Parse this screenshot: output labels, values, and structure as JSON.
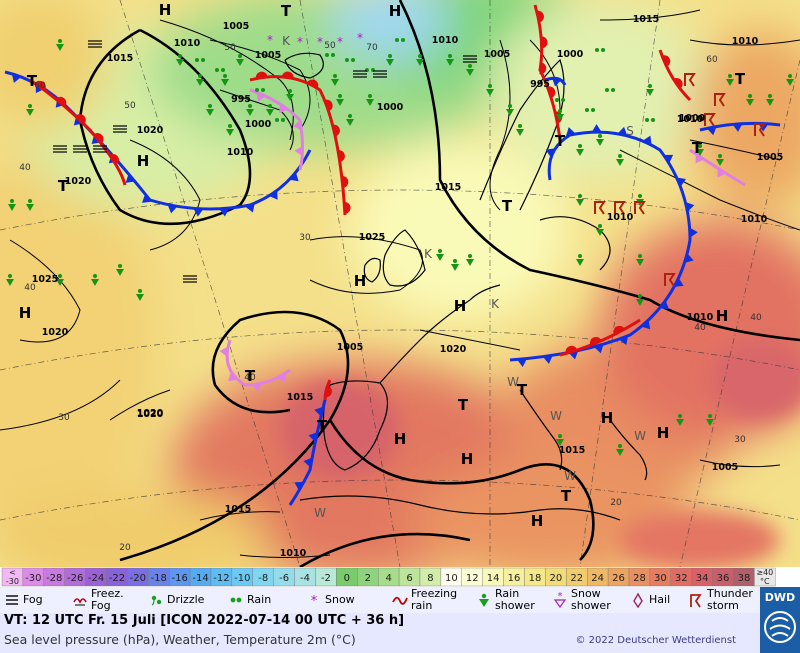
{
  "map": {
    "pressure_centers": [
      {
        "label": "H",
        "kind": "high"
      },
      {
        "label": "H",
        "kind": "high"
      },
      {
        "label": "H",
        "kind": "high"
      },
      {
        "label": "H",
        "kind": "high"
      },
      {
        "label": "H",
        "kind": "high"
      },
      {
        "label": "H",
        "kind": "high"
      },
      {
        "label": "H",
        "kind": "high"
      },
      {
        "label": "H",
        "kind": "high"
      },
      {
        "label": "H",
        "kind": "high"
      },
      {
        "label": "H",
        "kind": "high"
      },
      {
        "label": "H",
        "kind": "high"
      },
      {
        "label": "H",
        "kind": "high"
      },
      {
        "label": "T",
        "kind": "low"
      },
      {
        "label": "T",
        "kind": "low"
      },
      {
        "label": "T",
        "kind": "low"
      },
      {
        "label": "T",
        "kind": "low"
      },
      {
        "label": "T",
        "kind": "low"
      },
      {
        "label": "T",
        "kind": "low"
      },
      {
        "label": "T",
        "kind": "low"
      },
      {
        "label": "T",
        "kind": "low"
      },
      {
        "label": "T",
        "kind": "low"
      },
      {
        "label": "T",
        "kind": "low"
      },
      {
        "label": "T",
        "kind": "low"
      },
      {
        "label": "T",
        "kind": "low"
      }
    ],
    "isobar_labels": [
      "1015",
      "1010",
      "1005",
      "1020",
      "1010",
      "1005",
      "1000",
      "995",
      "1000",
      "995",
      "1010",
      "1020",
      "1025",
      "1015",
      "1025",
      "1020",
      "1020",
      "1020",
      "1015",
      "1010",
      "1015",
      "1005",
      "1010",
      "1005",
      "1010",
      "1010",
      "1000",
      "1015",
      "1005",
      "1020",
      "1015",
      "1005",
      "1000",
      "1010",
      "1010"
    ],
    "temperature_labels": [
      "40",
      "40",
      "40",
      "30",
      "30",
      "20",
      "20",
      "50",
      "50",
      "50",
      "60",
      "60",
      "70",
      "30",
      "40",
      "40"
    ],
    "wind_labels": [
      "K",
      "K",
      "K",
      "W",
      "W",
      "W",
      "W",
      "W",
      "S"
    ]
  },
  "temperature_scale": {
    "bins": [
      {
        "label": "<\n-30",
        "color": "#f2b8f2"
      },
      {
        "label": "-30",
        "color": "#dc8ce8"
      },
      {
        "label": "-28",
        "color": "#c87ae0"
      },
      {
        "label": "-26",
        "color": "#b06cd8"
      },
      {
        "label": "-24",
        "color": "#9a62d4"
      },
      {
        "label": "-22",
        "color": "#8a62d8"
      },
      {
        "label": "-20",
        "color": "#7a6ee0"
      },
      {
        "label": "-18",
        "color": "#6a82e8"
      },
      {
        "label": "-16",
        "color": "#5c96ee"
      },
      {
        "label": "-14",
        "color": "#56aaf0"
      },
      {
        "label": "-12",
        "color": "#5ebcf2"
      },
      {
        "label": "-10",
        "color": "#6ccaf2"
      },
      {
        "label": "-8",
        "color": "#80d6f0"
      },
      {
        "label": "-6",
        "color": "#94dcea"
      },
      {
        "label": "-4",
        "color": "#a8e2e2"
      },
      {
        "label": "-2",
        "color": "#b8e8d8"
      },
      {
        "label": "0",
        "color": "#78cc6c"
      },
      {
        "label": "2",
        "color": "#8ed47c"
      },
      {
        "label": "4",
        "color": "#a6dc8a"
      },
      {
        "label": "6",
        "color": "#bce49a"
      },
      {
        "label": "8",
        "color": "#d2ecaa"
      },
      {
        "label": "10",
        "color": "#fffff0"
      },
      {
        "label": "12",
        "color": "#fcfcd4"
      },
      {
        "label": "14",
        "color": "#f8f8b8"
      },
      {
        "label": "16",
        "color": "#f6f09e"
      },
      {
        "label": "18",
        "color": "#f4e888"
      },
      {
        "label": "20",
        "color": "#f2dc78"
      },
      {
        "label": "22",
        "color": "#f0cc6c"
      },
      {
        "label": "24",
        "color": "#eeb864"
      },
      {
        "label": "26",
        "color": "#eca460"
      },
      {
        "label": "28",
        "color": "#ea9060"
      },
      {
        "label": "30",
        "color": "#e67c60"
      },
      {
        "label": "32",
        "color": "#e06c64"
      },
      {
        "label": "34",
        "color": "#d86068"
      },
      {
        "label": "36",
        "color": "#c8606c"
      },
      {
        "label": "38",
        "color": "#b0606c"
      },
      {
        "label": "≥40\n°C",
        "color": "#e8e8e8"
      }
    ]
  },
  "legend": {
    "items": [
      {
        "icon": "fog-icon",
        "label": "Fog"
      },
      {
        "icon": "freezing-fog-icon",
        "label": "Freez.\nFog"
      },
      {
        "icon": "drizzle-icon",
        "label": "Drizzle"
      },
      {
        "icon": "rain-icon",
        "label": "Rain"
      },
      {
        "icon": "snow-icon",
        "label": "Snow"
      },
      {
        "icon": "freezing-rain-icon",
        "label": "Freezing\nrain"
      },
      {
        "icon": "rain-shower-icon",
        "label": "Rain\nshower"
      },
      {
        "icon": "snow-shower-icon",
        "label": "Snow\nshower"
      },
      {
        "icon": "hail-icon",
        "label": "Hail"
      },
      {
        "icon": "thunderstorm-icon",
        "label": "Thunder\nstorm"
      }
    ]
  },
  "info": {
    "valid_time": "VT: 12 UTC Fr.  15 Juli [ICON 2022-07-14  00 UTC + 36 h]",
    "subtitle": "Sea level pressure (hPa), Weather, Temperature 2m (°C)",
    "copyright": "© 2022 Deutscher Wetterdienst",
    "brand": "DWD"
  },
  "colors": {
    "cold_front": "#1030e0",
    "warm_front": "#e01010",
    "occlusion": "#e080e0",
    "isobar": "#000000",
    "coast": "#000000",
    "hot": "#e0705c",
    "warm": "#f2d070",
    "mild": "#fafab0",
    "cool": "#bde8a4",
    "cold": "#7ed47a"
  }
}
